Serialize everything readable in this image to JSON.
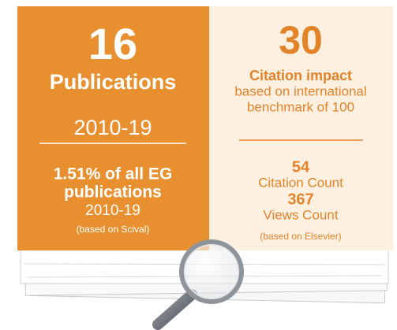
{
  "left_panel": {
    "count": "16",
    "label": "Publications",
    "period": "2010-19",
    "share_line1": "1.51% of all EG",
    "share_line2": "publications",
    "share_period": "2010-19",
    "source": "(based on Scival)"
  },
  "right_panel": {
    "score": "30",
    "label": "Citation impact",
    "description_line1": "based on international",
    "description_line2": "benchmark of 100",
    "citation_count": "54",
    "citation_count_label": "Citation Count",
    "views_count": "367",
    "views_count_label": "Views Count",
    "source": "(based on Elsevier)"
  }
}
